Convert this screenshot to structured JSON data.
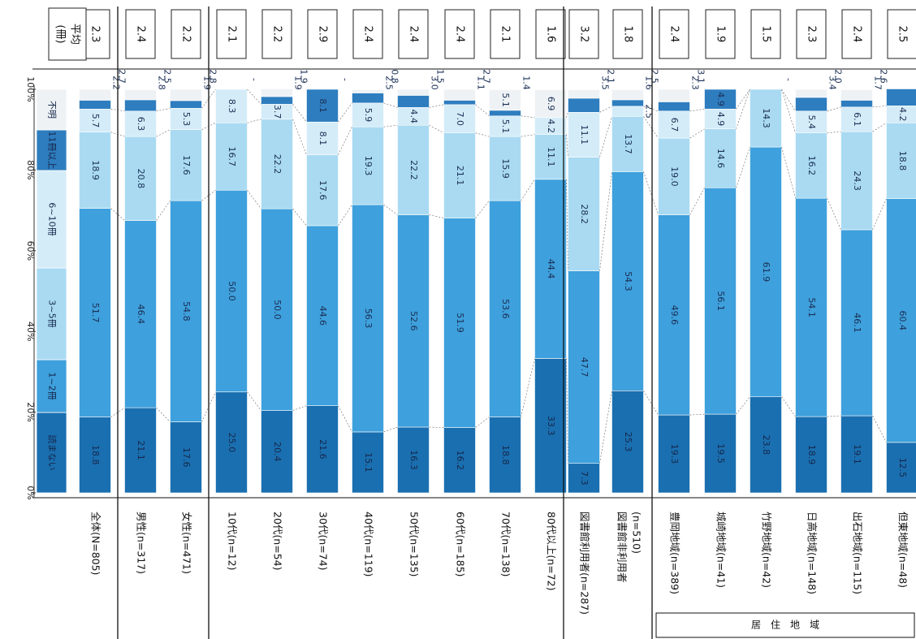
{
  "chart_data": {
    "type": "bar",
    "orientation": "stacked-100",
    "x_axis_ticks": [
      "0%",
      "20%",
      "40%",
      "60%",
      "80%",
      "100%"
    ],
    "average_header": "平均\n(冊)",
    "legend": [
      "1~2冊",
      "3~5冊",
      "6~10冊",
      "11冊以上",
      "不明"
    ],
    "legend_first_segment": "読まない",
    "series_colors": [
      "#1a6fb0",
      "#3ea0dc",
      "#a8d8f0",
      "#2b7fc2",
      "#e9eef2"
    ],
    "series_text_colors": [
      "#1b2f55",
      "#1b2f55",
      "#1b2f55",
      "#1b2f55",
      "#1b2f55"
    ],
    "group_label": "居　住　地　域",
    "categories": [
      {
        "label": "全体(N=805)",
        "avg": "2.3",
        "values": [
          18.8,
          51.7,
          18.9,
          5.7,
          2.2,
          2.7
        ],
        "labels": [
          "18.8",
          "51.7",
          "18.9",
          "5.7",
          "2.2",
          "2.7"
        ]
      },
      {
        "label": "男性(n=317)",
        "avg": "2.4",
        "values": [
          21.1,
          46.4,
          20.8,
          6.3,
          2.8,
          2.5
        ],
        "labels": [
          "21.1",
          "46.4",
          "20.8",
          "6.3",
          "2.8",
          "2.5"
        ]
      },
      {
        "label": "女性(n=471)",
        "avg": "2.2",
        "values": [
          17.6,
          54.8,
          17.6,
          5.3,
          1.9,
          2.8
        ],
        "labels": [
          "17.6",
          "54.8",
          "17.6",
          "5.3",
          "1.9",
          "2.8"
        ]
      },
      {
        "label": "10代(n=12)",
        "avg": "2.1",
        "values": [
          25.0,
          50.0,
          16.7,
          8.3,
          0,
          0
        ],
        "labels": [
          "25.0",
          "50.0",
          "16.7",
          "8.3",
          "",
          "-"
        ]
      },
      {
        "label": "20代(n=54)",
        "avg": "2.2",
        "values": [
          20.4,
          50.0,
          22.2,
          3.7,
          1.9,
          1.9
        ],
        "labels": [
          "20.4",
          "50.0",
          "22.2",
          "3.7",
          "1.9",
          "1.9"
        ]
      },
      {
        "label": "30代(n=74)",
        "avg": "2.9",
        "values": [
          21.6,
          44.6,
          17.6,
          8.1,
          8.1,
          0
        ],
        "labels": [
          "21.6",
          "44.6",
          "17.6",
          "8.1",
          "8.1",
          "-"
        ]
      },
      {
        "label": "40代(n=119)",
        "avg": "2.4",
        "values": [
          15.1,
          56.3,
          19.3,
          5.9,
          2.5,
          0.8
        ],
        "labels": [
          "15.1",
          "56.3",
          "19.3",
          "5.9",
          "2.5",
          "0.8"
        ]
      },
      {
        "label": "50代(n=135)",
        "avg": "2.4",
        "values": [
          16.3,
          52.6,
          22.2,
          4.4,
          3.0,
          1.5
        ],
        "labels": [
          "16.3",
          "52.6",
          "22.2",
          "4.4",
          "3.0",
          "1.5"
        ]
      },
      {
        "label": "60代(n=185)",
        "avg": "2.4",
        "values": [
          16.2,
          51.9,
          21.1,
          7.0,
          1.1,
          2.7
        ],
        "labels": [
          "16.2",
          "51.9",
          "21.1",
          "7.0",
          "1.1",
          "2.7"
        ]
      },
      {
        "label": "70代(n=138)",
        "avg": "2.1",
        "values": [
          18.8,
          53.6,
          15.9,
          5.1,
          1.4,
          5.1
        ],
        "labels": [
          "18.8",
          "53.6",
          "15.9",
          "5.1",
          "1.4",
          "5.1"
        ]
      },
      {
        "label": "80代以上(n=72)",
        "avg": "1.6",
        "values": [
          33.3,
          44.4,
          11.1,
          4.2,
          0,
          6.9
        ],
        "labels": [
          "33.3",
          "44.4",
          "11.1",
          "4.2",
          "",
          "6.9"
        ]
      },
      {
        "label": "図書館利用者(n=287)",
        "avg": "3.2",
        "values": [
          7.3,
          47.7,
          28.2,
          11.1,
          3.5,
          2.1
        ],
        "labels": [
          "7.3",
          "47.7",
          "28.2",
          "11.1",
          "3.5",
          "2.1"
        ]
      },
      {
        "label": "図書館非利用者\n(n=510)",
        "avg": "1.8",
        "values": [
          25.3,
          54.3,
          13.7,
          2.5,
          1.6,
          2.5
        ],
        "labels": [
          "25.3",
          "54.3",
          "13.7",
          "2.5",
          "1.6",
          "2.5"
        ]
      },
      {
        "label": "豊岡地域(n=389)",
        "avg": "2.4",
        "values": [
          19.3,
          49.6,
          19.0,
          6.7,
          2.3,
          3.1
        ],
        "labels": [
          "19.3",
          "49.6",
          "19.0",
          "6.7",
          "2.3",
          "3.1"
        ]
      },
      {
        "label": "城崎地域(n=41)",
        "avg": "1.9",
        "values": [
          19.5,
          56.1,
          14.6,
          4.9,
          4.9,
          0
        ],
        "labels": [
          "19.5",
          "56.1",
          "14.6",
          "4.9",
          "4.9",
          ""
        ]
      },
      {
        "label": "竹野地域(n=42)",
        "avg": "1.5",
        "values": [
          23.8,
          61.9,
          14.3,
          0,
          0,
          0
        ],
        "labels": [
          "23.8",
          "61.9",
          "14.3",
          "",
          "",
          "-"
        ]
      },
      {
        "label": "日高地域(n=148)",
        "avg": "2.3",
        "values": [
          18.9,
          54.1,
          16.2,
          5.4,
          3.4,
          2.0
        ],
        "labels": [
          "18.9",
          "54.1",
          "16.2",
          "5.4",
          "3.4",
          "2.0"
        ]
      },
      {
        "label": "出石地域(n=115)",
        "avg": "2.4",
        "values": [
          19.1,
          46.1,
          24.3,
          6.1,
          1.7,
          2.6
        ],
        "labels": [
          "19.1",
          "46.1",
          "24.3",
          "6.1",
          "1.7",
          "2.6"
        ]
      },
      {
        "label": "但東地域(n=48)",
        "avg": "2.5",
        "values": [
          12.5,
          60.4,
          18.8,
          4.2,
          4.2,
          0
        ],
        "labels": [
          "12.5",
          "60.4",
          "18.8",
          "4.2",
          "4.2",
          "-"
        ]
      }
    ]
  }
}
